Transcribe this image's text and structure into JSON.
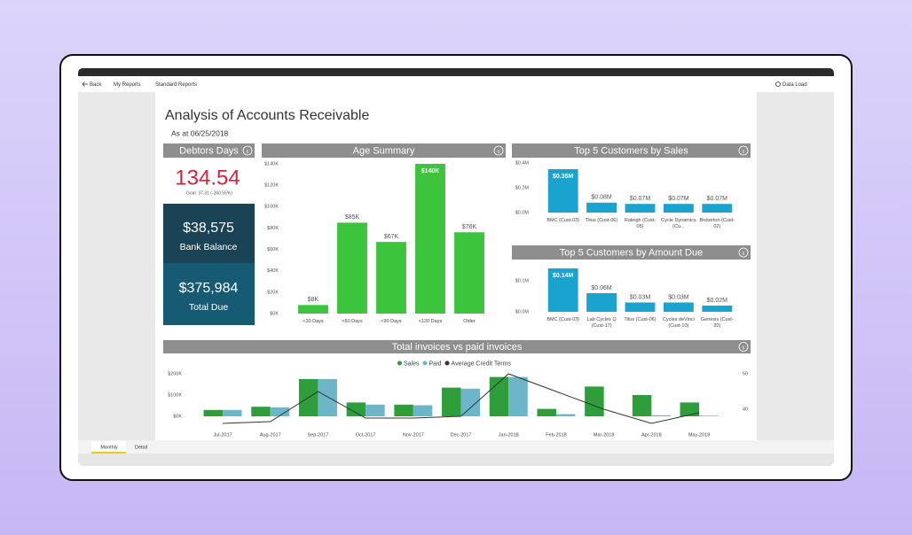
{
  "nav": {
    "back": "Back",
    "my_reports": "My Reports",
    "standard_reports": "Standard Reports",
    "data_load": "Data Load"
  },
  "report": {
    "title": "Analysis of Accounts Receivable",
    "as_at": "As at 06/25/2018"
  },
  "kpis": {
    "debtors_days": {
      "title": "Debtors Days",
      "value": "134.54",
      "goal": "Goal: 37.31 (-260.55%)"
    },
    "bank_balance": {
      "value": "$38,575",
      "label": "Bank Balance"
    },
    "total_due": {
      "value": "$375,984",
      "label": "Total Due"
    }
  },
  "tabs": [
    "Monthly",
    "Detail"
  ],
  "chart_data": [
    {
      "type": "bar",
      "title": "Age Summary",
      "color": "#3dc43d",
      "categories": [
        "<30 Days",
        "<60 Days",
        "<90 Days",
        "<120 Days",
        "Older"
      ],
      "values": [
        8,
        85,
        67,
        140,
        76
      ],
      "value_labels": [
        "$8K",
        "$85K",
        "$67K",
        "$140K",
        "$76K"
      ],
      "ylim": [
        0,
        140
      ],
      "yticks": [
        {
          "value": 0,
          "label": "$0K"
        },
        {
          "value": 20,
          "label": "$20K"
        },
        {
          "value": 40,
          "label": "$40K"
        },
        {
          "value": 60,
          "label": "$60K"
        },
        {
          "value": 80,
          "label": "$80K"
        },
        {
          "value": 100,
          "label": "$100K"
        },
        {
          "value": 120,
          "label": "$120K"
        },
        {
          "value": 140,
          "label": "$140K"
        }
      ]
    },
    {
      "type": "bar",
      "title": "Top 5 Customers by Sales",
      "color": "#1ba3d0",
      "categories": [
        "BMC (Cust-03)",
        "Titus (Cust-06)",
        "Raleigh (Cust-05)",
        "Cycle Dynamics (Cu...",
        "Bickerton (Cust-02)"
      ],
      "values": [
        0.35,
        0.08,
        0.07,
        0.07,
        0.07
      ],
      "value_labels": [
        "$0.35M",
        "$0.08M",
        "$0.07M",
        "$0.07M",
        "$0.07M"
      ],
      "ylim": [
        0,
        0.4
      ],
      "yticks": [
        {
          "value": 0,
          "label": "$0.0M"
        },
        {
          "value": 0.2,
          "label": "$0.2M"
        },
        {
          "value": 0.4,
          "label": "$0.4M"
        }
      ]
    },
    {
      "type": "bar",
      "title": "Top 5 Customers by Amount Due",
      "color": "#1ba3d0",
      "categories": [
        "BMC (Cust-03)",
        "Lab Cycles Q (Cust-17)",
        "Titus (Cust-06)",
        "Cycles deVinci (Cust-10)",
        "Genesis (Cust-20)"
      ],
      "values": [
        0.14,
        0.06,
        0.03,
        0.03,
        0.02
      ],
      "value_labels": [
        "$0.14M",
        "$0.06M",
        "$0.03M",
        "$0.03M",
        "$0.02M"
      ],
      "ylim": [
        0,
        0.15
      ],
      "yticks": [
        {
          "value": 0,
          "label": "$0.0M"
        },
        {
          "value": 0.1,
          "label": "$0.1M"
        }
      ]
    },
    {
      "type": "combo",
      "title": "Total invoices vs paid invoices",
      "categories": [
        "Jul-2017",
        "Aug-2017",
        "Sep-2017",
        "Oct-2017",
        "Nov-2017",
        "Dec-2017",
        "Jan-2018",
        "Feb-2018",
        "Mar-2018",
        "Apr-2018",
        "May-2018"
      ],
      "series": [
        {
          "name": "Sales",
          "color": "#2e9e3a",
          "values": [
            30,
            45,
            175,
            65,
            55,
            135,
            185,
            35,
            140,
            100,
            65
          ]
        },
        {
          "name": "Paid",
          "color": "#6db6c9",
          "values": [
            30,
            42,
            175,
            55,
            52,
            130,
            185,
            10,
            0,
            5,
            3
          ]
        },
        {
          "name": "Average Credit Terms",
          "color": "#333333",
          "axis": "y2",
          "values": [
            36,
            36.5,
            45,
            37.5,
            37.5,
            38,
            50,
            45,
            40,
            36,
            39
          ]
        }
      ],
      "ylim": [
        -50,
        200
      ],
      "yticks": [
        {
          "value": 0,
          "label": "$0K"
        },
        {
          "value": 100,
          "label": "$100K"
        },
        {
          "value": 200,
          "label": "$200K"
        }
      ],
      "y2lim": [
        35,
        50
      ],
      "y2ticks": [
        40,
        50
      ]
    }
  ]
}
